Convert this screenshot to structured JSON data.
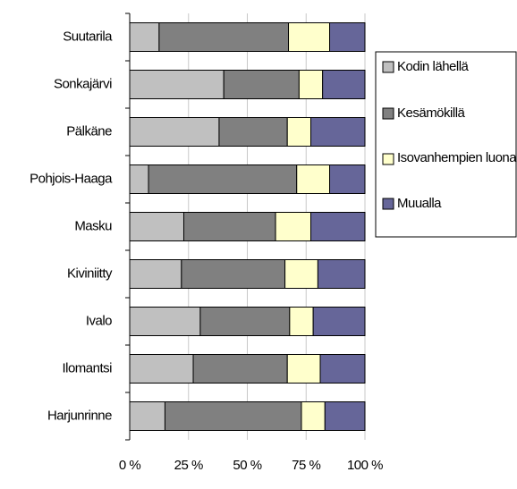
{
  "chart_data": {
    "type": "stacked_bar_horizontal",
    "categories": [
      "Suutarila",
      "Sonkajärvi",
      "Pälkäne",
      "Pohjois-Haaga",
      "Masku",
      "Kiviniitty",
      "Ivalo",
      "Ilomantsi",
      "Harjunrinne"
    ],
    "series": [
      {
        "name": "Kodin lähellä",
        "color": "#c0c0c0",
        "values": [
          12.5,
          40,
          38,
          8,
          23,
          22,
          30,
          27,
          15
        ]
      },
      {
        "name": "Kesämökillä",
        "color": "#808080",
        "values": [
          55,
          32,
          29,
          63,
          39,
          44,
          38,
          40,
          58
        ]
      },
      {
        "name": "Isovanhempien luona",
        "color": "#ffffcc",
        "values": [
          17.5,
          10,
          10,
          14,
          15,
          14,
          10,
          14,
          10
        ]
      },
      {
        "name": "Muualla",
        "color": "#666699",
        "values": [
          15,
          18,
          23,
          15,
          23,
          20,
          22,
          19,
          17
        ]
      }
    ],
    "xlim": [
      0,
      100
    ],
    "xticks": [
      {
        "value": 0,
        "label": "0 %"
      },
      {
        "value": 25,
        "label": "25 %"
      },
      {
        "value": 50,
        "label": "50 %"
      },
      {
        "value": 75,
        "label": "75 %"
      },
      {
        "value": 100,
        "label": "100 %"
      }
    ],
    "grid": true,
    "legend": "right"
  }
}
